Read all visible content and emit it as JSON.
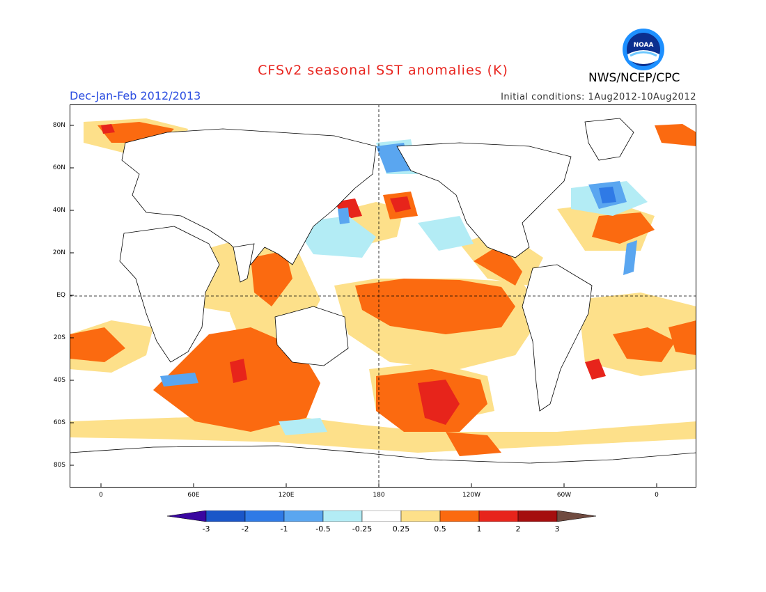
{
  "title": "CFSv2 seasonal SST anomalies (K)",
  "season": "Dec-Jan-Feb 2012/2013",
  "initial_conditions": "Initial conditions: 1Aug2012-10Aug2012",
  "agency": "NWS/NCEP/CPC",
  "logo_text": "NOAA",
  "map": {
    "lat_labels": [
      "80N",
      "60N",
      "40N",
      "20N",
      "EQ",
      "20S",
      "40S",
      "60S",
      "80S"
    ],
    "lon_labels": [
      "0",
      "60E",
      "120E",
      "180",
      "120W",
      "60W",
      "0"
    ],
    "lon_range": [
      -20,
      380
    ],
    "lat_range": [
      -90,
      90
    ]
  },
  "colorbar": {
    "labels": [
      "-3",
      "-2",
      "-1",
      "-0.5",
      "-0.25",
      "0.25",
      "0.5",
      "1",
      "2",
      "3"
    ],
    "colors": [
      "#3a07a0",
      "#1a56c8",
      "#2f7ae6",
      "#5aa6f0",
      "#b3ecf5",
      "#ffffff",
      "#fde08a",
      "#fb6a10",
      "#e7241b",
      "#a50e0e",
      "#704b40"
    ]
  }
}
